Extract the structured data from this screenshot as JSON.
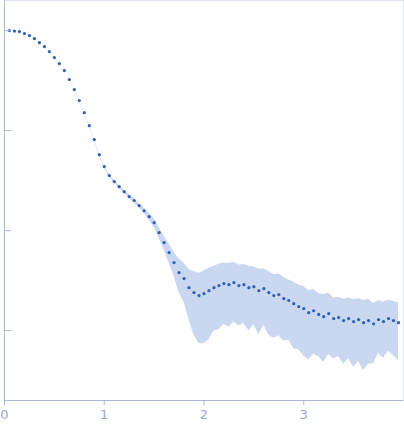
{
  "chart_data": {
    "type": "scatter",
    "color": "#2f5fb3",
    "log": "y",
    "tick_labels": "x",
    "xlim": [
      0,
      4
    ],
    "xticks": [
      0,
      1,
      2,
      3
    ],
    "ylim": [
      0.0002,
      2
    ],
    "yticks": [
      0.001,
      0.01,
      0.1,
      1
    ],
    "x": [
      0.05,
      0.1,
      0.15,
      0.2,
      0.25,
      0.3,
      0.35,
      0.4,
      0.45,
      0.5,
      0.55,
      0.6,
      0.65,
      0.7,
      0.75,
      0.8,
      0.85,
      0.9,
      0.95,
      1.0,
      1.05,
      1.1,
      1.15,
      1.2,
      1.25,
      1.3,
      1.35,
      1.4,
      1.45,
      1.5,
      1.55,
      1.6,
      1.65,
      1.7,
      1.75,
      1.8,
      1.85,
      1.9,
      1.95,
      2.0,
      2.05,
      2.1,
      2.15,
      2.2,
      2.25,
      2.3,
      2.35,
      2.4,
      2.45,
      2.5,
      2.55,
      2.6,
      2.65,
      2.7,
      2.75,
      2.8,
      2.85,
      2.9,
      2.95,
      3.0,
      3.05,
      3.1,
      3.15,
      3.2,
      3.25,
      3.3,
      3.35,
      3.4,
      3.45,
      3.5,
      3.55,
      3.6,
      3.65,
      3.7,
      3.75,
      3.8,
      3.85,
      3.9,
      3.95
    ],
    "values": [
      1.0,
      0.989,
      0.977,
      0.933,
      0.891,
      0.832,
      0.759,
      0.692,
      0.617,
      0.537,
      0.468,
      0.398,
      0.324,
      0.257,
      0.2,
      0.151,
      0.112,
      0.0813,
      0.0575,
      0.0437,
      0.0355,
      0.0309,
      0.0275,
      0.0245,
      0.0219,
      0.02,
      0.0178,
      0.0158,
      0.0138,
      0.012,
      0.00955,
      0.00759,
      0.00603,
      0.00479,
      0.0038,
      0.00331,
      0.00269,
      0.0024,
      0.00224,
      0.00234,
      0.00251,
      0.00269,
      0.00282,
      0.00295,
      0.00288,
      0.00302,
      0.00282,
      0.00288,
      0.00269,
      0.00275,
      0.00251,
      0.00263,
      0.0024,
      0.00224,
      0.00229,
      0.00209,
      0.002,
      0.00186,
      0.00174,
      0.00166,
      0.00151,
      0.00158,
      0.00145,
      0.00138,
      0.00148,
      0.00132,
      0.00135,
      0.00126,
      0.00132,
      0.00123,
      0.00129,
      0.0012,
      0.00126,
      0.00117,
      0.00129,
      0.00123,
      0.00132,
      0.00126,
      0.0012
    ],
    "errors": [
      0.005,
      0.005,
      0.005,
      0.005,
      0.004,
      0.004,
      0.004,
      0.003,
      0.003,
      0.003,
      0.003,
      0.002,
      0.002,
      0.002,
      0.002,
      0.002,
      0.0015,
      0.0012,
      0.001,
      0.0009,
      0.0009,
      0.0009,
      0.0009,
      0.0009,
      0.0009,
      0.001,
      0.001,
      0.001,
      0.0011,
      0.0012,
      0.0012,
      0.0012,
      0.0013,
      0.0013,
      0.0014,
      0.0014,
      0.0014,
      0.0015,
      0.0015,
      0.0016,
      0.0017,
      0.0017,
      0.0018,
      0.0018,
      0.0018,
      0.0018,
      0.0017,
      0.0017,
      0.0017,
      0.0016,
      0.0016,
      0.0015,
      0.0015,
      0.0014,
      0.0014,
      0.0013,
      0.0012,
      0.0012,
      0.0011,
      0.0011,
      0.001,
      0.001,
      0.0009,
      0.0009,
      0.0009,
      0.0008,
      0.0008,
      0.0008,
      0.0008,
      0.0008,
      0.0008,
      0.0008,
      0.0008,
      0.0007,
      0.0007,
      0.0007,
      0.0007,
      0.0007,
      0.0007
    ]
  }
}
